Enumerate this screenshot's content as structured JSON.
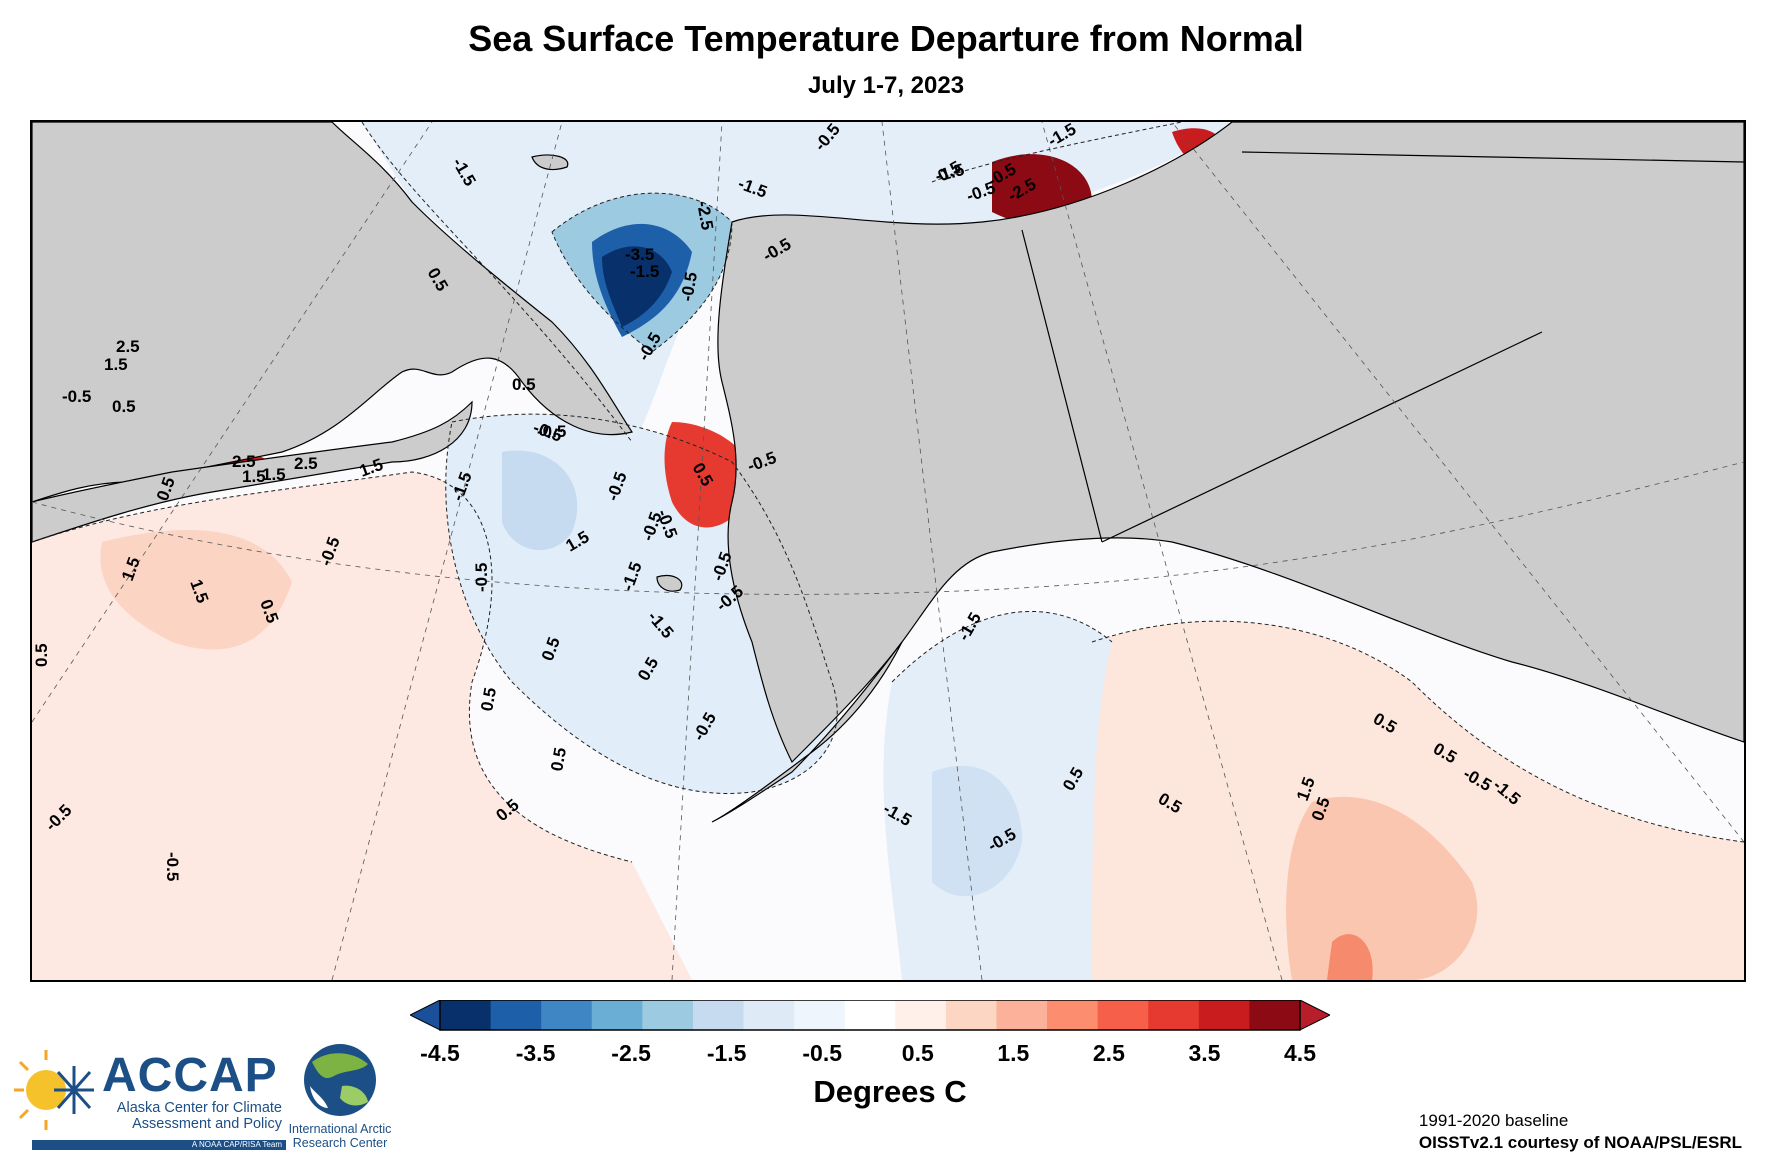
{
  "title": "Sea Surface Temperature Departure from Normal",
  "subtitle": "July 1-7, 2023",
  "map": {
    "land_color": "#cccccc",
    "background_color": "#fbfbfd",
    "contour_labels": [
      "-0.5",
      "-1.5",
      "-1.5",
      "-2.5",
      "-3.5",
      "-1.5",
      "-0.5",
      "-1.5",
      "-0.5",
      "-0.5",
      "-1.5",
      "-0.5",
      "-1.5",
      "-2.5",
      "-0.5",
      "0.5",
      "1.5",
      "2.5",
      "2.5",
      "1.5",
      "-0.5",
      "0.5",
      "-0.5",
      "0.5",
      "1.5",
      "2.5",
      "1.5",
      "1.5",
      "0.5",
      "1.5",
      "1.5",
      "0.5",
      "0.5",
      "-0.5",
      "-0.5",
      "-1.5",
      "-1.5",
      "-0.5",
      "0.5",
      "0.5",
      "0.5",
      "-0.5",
      "0.5",
      "-0.5",
      "-0.5",
      "0.5",
      "0.5",
      "-1.5",
      "-1.5",
      "-0.5",
      "0.5",
      "0.5",
      "1.5",
      "0.5",
      "-0.5",
      "-1.5",
      "-0.5",
      "-0.5",
      "-0.5",
      "0.5",
      "-0.5",
      "0.5",
      "0.5",
      "-0.5",
      "-0.5"
    ]
  },
  "colorbar": {
    "colors": [
      "#08306b",
      "#1d5fa9",
      "#3f86c4",
      "#6aaed6",
      "#9ccae1",
      "#c6dbef",
      "#deebf7",
      "#eef5fc",
      "#ffffff",
      "#fff0ea",
      "#fdd5c3",
      "#fcb29a",
      "#fc8d6e",
      "#f6604b",
      "#e63a30",
      "#c81c1f",
      "#8c0a13"
    ],
    "ticks": [
      "-4.5",
      "-3.5",
      "-2.5",
      "-1.5",
      "-0.5",
      "0.5",
      "1.5",
      "2.5",
      "3.5",
      "4.5"
    ],
    "label": "Degrees C",
    "underflow_color": "#1a4f9a",
    "overflow_color": "#b81d2a"
  },
  "logos": {
    "accap_name": "ACCAP",
    "accap_full": "Alaska Center for Climate Assessment and Policy",
    "accap_tagline": "A NOAA CAP/RISA Team",
    "iarc_name": "International Arctic Research Center"
  },
  "credits": {
    "baseline": "1991-2020 baseline",
    "source": "OISSTv2.1 courtesy of NOAA/PSL/ESRL"
  }
}
